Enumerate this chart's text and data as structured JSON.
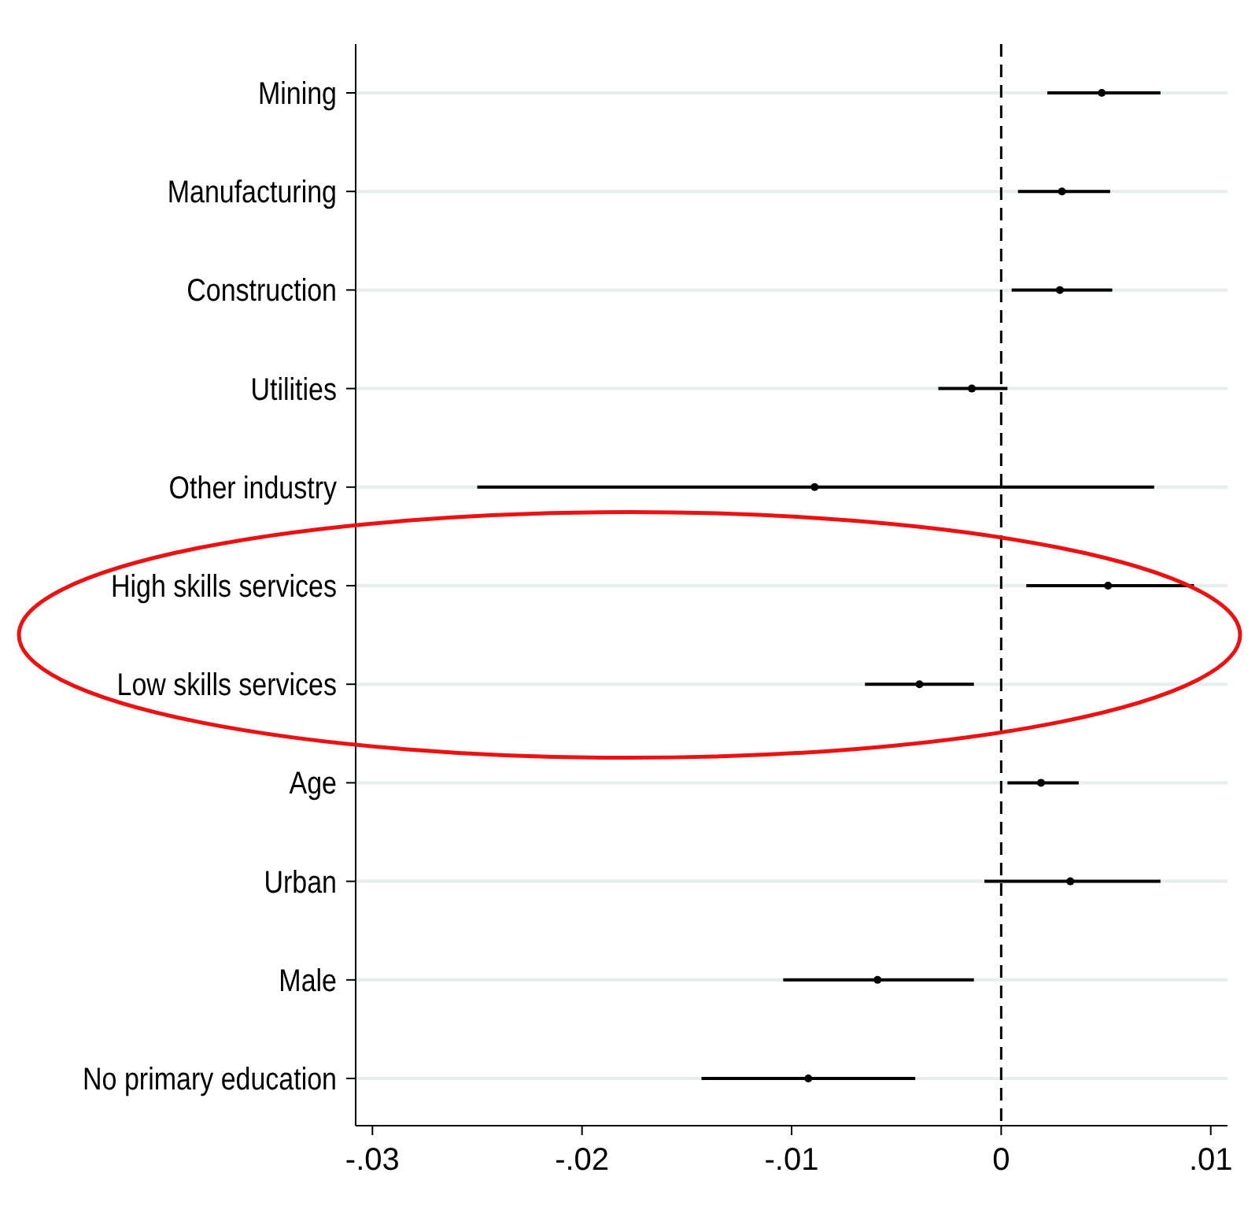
{
  "chart_data": {
    "type": "scatter",
    "orientation": "horizontal",
    "categories": [
      "Mining",
      "Manufacturing",
      "Construction",
      "Utilities",
      "Other industry",
      "High skills services",
      "Low skills services",
      "Age",
      "Urban",
      "Male",
      "No primary education"
    ],
    "values": [
      0.0048,
      0.0029,
      0.0028,
      -0.0014,
      -0.0089,
      0.0051,
      -0.0039,
      0.0019,
      0.0033,
      -0.0059,
      -0.0092
    ],
    "errors": [
      [
        0.0022,
        0.0076
      ],
      [
        0.0008,
        0.0052
      ],
      [
        0.0005,
        0.0053
      ],
      [
        -0.003,
        0.0003
      ],
      [
        -0.025,
        0.0073
      ],
      [
        0.0012,
        0.0092
      ],
      [
        -0.0065,
        -0.0013
      ],
      [
        0.0003,
        0.0037
      ],
      [
        -0.0008,
        0.0076
      ],
      [
        -0.0104,
        -0.0013
      ],
      [
        -0.0143,
        -0.0041
      ]
    ],
    "color": "#000000",
    "marker": "circle",
    "grid": "y",
    "xlim": [
      -0.0308,
      0.0108
    ],
    "xticks": [
      {
        "value": -0.03,
        "label": "-.03"
      },
      {
        "value": -0.02,
        "label": "-.02"
      },
      {
        "value": -0.01,
        "label": "-.01"
      },
      0,
      {
        "value": 0.01,
        "label": ".01"
      }
    ],
    "ref_lines": [
      {
        "axis": "x",
        "value": 0,
        "line_style": "dashed",
        "color": "#000000"
      }
    ]
  }
}
